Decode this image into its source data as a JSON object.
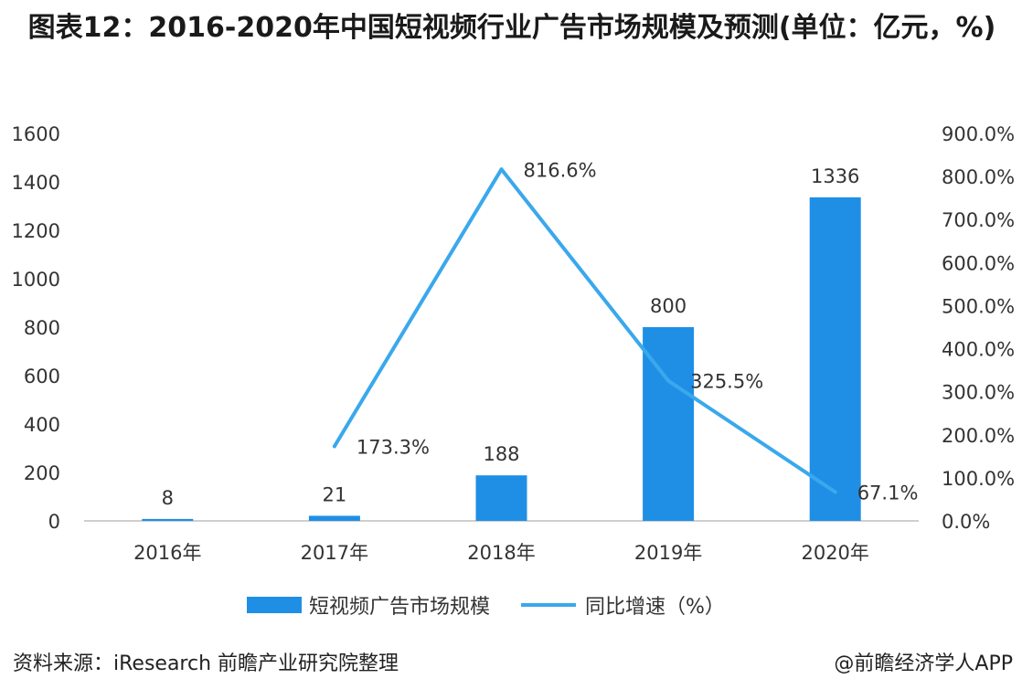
{
  "chart_data": {
    "type": "bar",
    "title": "图表12：2016-2020年中国短视频行业广告市场规模及预测(单位：亿元，%)",
    "categories": [
      "2016年",
      "2017年",
      "2018年",
      "2019年",
      "2020年"
    ],
    "series": [
      {
        "name": "短视频广告市场规模",
        "type": "bar",
        "axis": "left",
        "values": [
          8,
          21,
          188,
          800,
          1336
        ],
        "labels": [
          "8",
          "21",
          "188",
          "800",
          "1336"
        ]
      },
      {
        "name": "同比增速（%）",
        "type": "line",
        "axis": "right",
        "values": [
          null,
          173.3,
          816.6,
          325.5,
          67.1
        ],
        "labels": [
          "",
          "173.3%",
          "816.6%",
          "325.5%",
          "67.1%"
        ]
      }
    ],
    "y_left": {
      "ylim": [
        0,
        1600
      ],
      "ticks": [
        "0",
        "200",
        "400",
        "600",
        "800",
        "1000",
        "1200",
        "1400",
        "1600"
      ]
    },
    "y_right": {
      "ylim": [
        0,
        900
      ],
      "ticks": [
        "0.0%",
        "100.0%",
        "200.0%",
        "300.0%",
        "400.0%",
        "500.0%",
        "600.0%",
        "700.0%",
        "800.0%",
        "900.0%"
      ]
    },
    "grid": false,
    "legend_position": "bottom"
  },
  "colors": {
    "bar": "#1f8fe6",
    "line": "#3aa8ec",
    "axis": "#bfbfbf",
    "text": "#333333"
  },
  "footer": {
    "source": "资料来源：iResearch 前瞻产业研究院整理",
    "brand": "@前瞻经济学人APP"
  }
}
